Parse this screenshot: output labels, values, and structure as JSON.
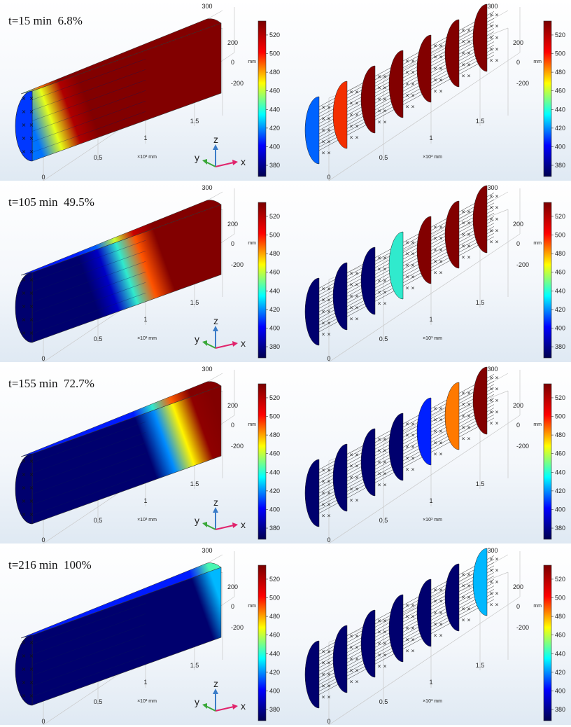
{
  "rows": [
    {
      "label": "t=15 min  6.8%",
      "progress": 0.068
    },
    {
      "label": "t=105 min  49.5%",
      "progress": 0.495
    },
    {
      "label": "t=155 min  72.7%",
      "progress": 0.727
    },
    {
      "label": "t=216 min  100%",
      "progress": 1.0
    }
  ],
  "colorbar": {
    "ticks": [
      "520",
      "500",
      "480",
      "460",
      "440",
      "420",
      "400",
      "380"
    ],
    "min": 368,
    "max": 535,
    "unit": "mm",
    "colors": [
      "#00004f",
      "#0000ff",
      "#00ffff",
      "#ffff00",
      "#ff0000",
      "#7a0000"
    ]
  },
  "axes": {
    "x_ticks": [
      "0",
      "0.5",
      "1",
      "1.5"
    ],
    "x_unit": "×10³ mm",
    "z_top": "300",
    "z_ticks": [
      "200",
      "0",
      "-200"
    ],
    "x": "x",
    "y": "y",
    "z": "z"
  },
  "colors": {
    "hot": "#8b0000",
    "axis_x": "#e0246c",
    "axis_y": "#3aa83a",
    "axis_z": "#3a7cc8"
  }
}
